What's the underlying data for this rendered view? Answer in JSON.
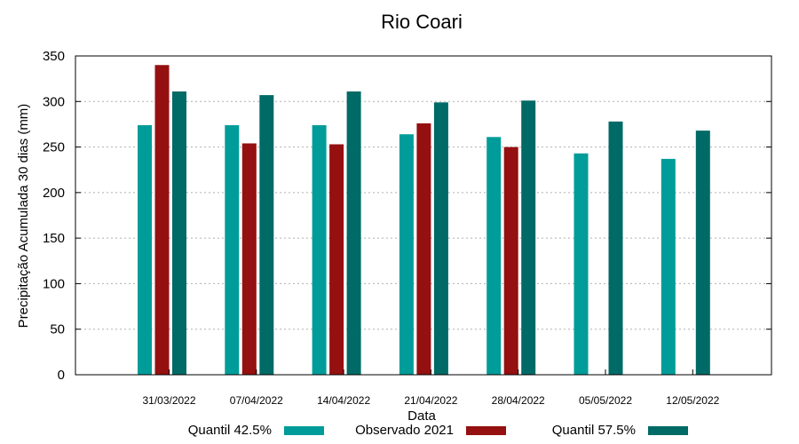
{
  "chart_data": {
    "type": "bar",
    "title": "Rio Coari",
    "xlabel": "Data",
    "ylabel": "Precipitação Acumulada 30 dias (mm)",
    "ylim": [
      0,
      350
    ],
    "yticks": [
      0,
      50,
      100,
      150,
      200,
      250,
      300,
      350
    ],
    "grid": true,
    "legend_position": "bottom",
    "categories": [
      "31/03/2022",
      "07/04/2022",
      "14/04/2022",
      "21/04/2022",
      "28/04/2022",
      "05/05/2022",
      "12/05/2022"
    ],
    "series": [
      {
        "name": "Quantil 42.5%",
        "color": "#009c99",
        "values": [
          274,
          274,
          274,
          264,
          261,
          243,
          237
        ]
      },
      {
        "name": "Observado 2021",
        "color": "#951010",
        "values": [
          340,
          254,
          253,
          276,
          250,
          null,
          null
        ]
      },
      {
        "name": "Quantil 57.5%",
        "color": "#006a66",
        "values": [
          311,
          307,
          311,
          299,
          301,
          278,
          268
        ]
      }
    ]
  }
}
